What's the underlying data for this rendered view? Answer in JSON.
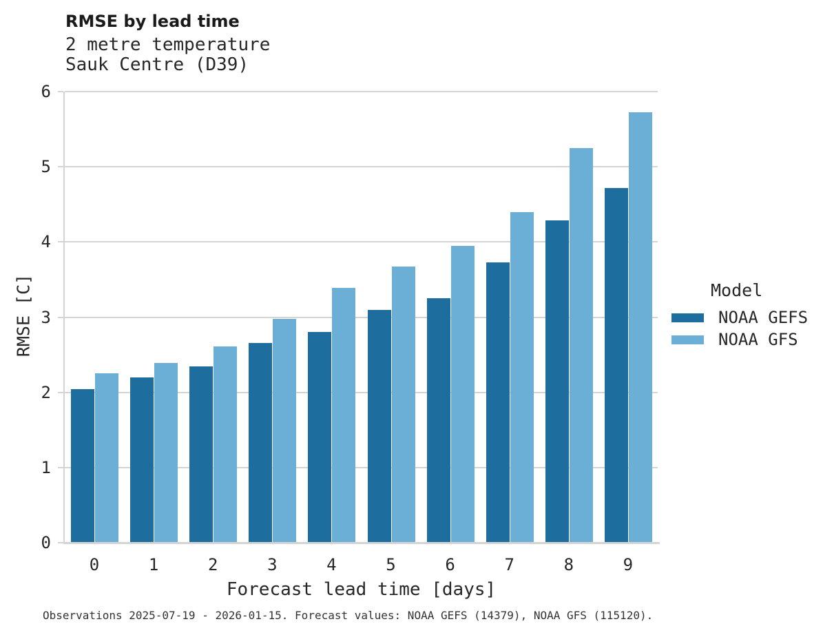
{
  "header": {
    "title": "RMSE by lead time",
    "subtitle_line1": "2 metre temperature",
    "subtitle_line2": "Sauk Centre (D39)"
  },
  "legend": {
    "title": "Model",
    "items": [
      {
        "label": "NOAA GEFS",
        "color": "#1d6d9e"
      },
      {
        "label": "NOAA GFS",
        "color": "#6baed6"
      }
    ]
  },
  "footer": {
    "caption": "Observations 2025-07-19 - 2026-01-15. Forecast values: NOAA GEFS (14379), NOAA GFS (115120)."
  },
  "chart_data": {
    "type": "bar",
    "title": "RMSE by lead time",
    "subtitle": "2 metre temperature, Sauk Centre (D39)",
    "categories": [
      "0",
      "1",
      "2",
      "3",
      "4",
      "5",
      "6",
      "7",
      "8",
      "9"
    ],
    "series": [
      {
        "name": "NOAA GEFS",
        "color": "#1d6d9e",
        "values": [
          2.04,
          2.2,
          2.35,
          2.66,
          2.8,
          3.1,
          3.25,
          3.73,
          4.29,
          4.72
        ]
      },
      {
        "name": "NOAA GFS",
        "color": "#6baed6",
        "values": [
          2.25,
          2.39,
          2.61,
          2.98,
          3.39,
          3.67,
          3.95,
          4.4,
          5.25,
          5.73
        ]
      }
    ],
    "xlabel": "Forecast lead time [days]",
    "ylabel": "RMSE [C]",
    "ylim": [
      0,
      6
    ],
    "yticks": [
      0,
      1,
      2,
      3,
      4,
      5,
      6
    ],
    "grid": true,
    "grid_color": "#d4d4d4",
    "legend_position": "right"
  }
}
